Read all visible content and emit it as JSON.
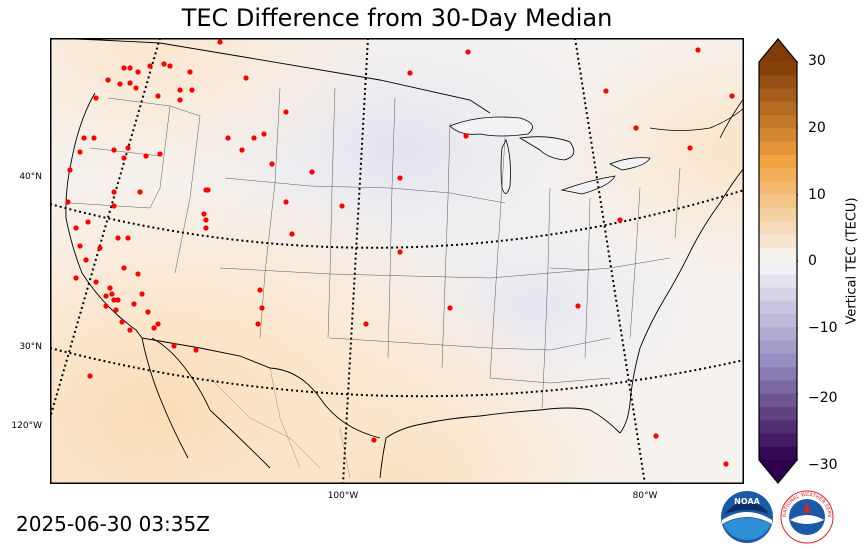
{
  "title": "TEC Difference from 30-Day Median",
  "timestamp": "2025-06-30 03:35Z",
  "lat_labels": [
    "40°N",
    "30°N",
    "120°W"
  ],
  "lon_labels": [
    "100°W",
    "80°W"
  ],
  "colorbar": {
    "label": "Vertical TEC (TECU)",
    "ticks": [
      "30",
      "20",
      "10",
      "0",
      "−10",
      "−20",
      "−30"
    ],
    "min": -30,
    "max": 30,
    "colors": {
      "positive_max": "#7f3b08",
      "positive_mid": "#f1a340",
      "neutral": "#f7f7f7",
      "negative_mid": "#998ec3",
      "negative_max": "#2d004b"
    }
  },
  "station_color": "#ff0000",
  "logos": {
    "noaa": "NOAA",
    "nws": "NATIONAL WEATHER SERVICE"
  }
}
